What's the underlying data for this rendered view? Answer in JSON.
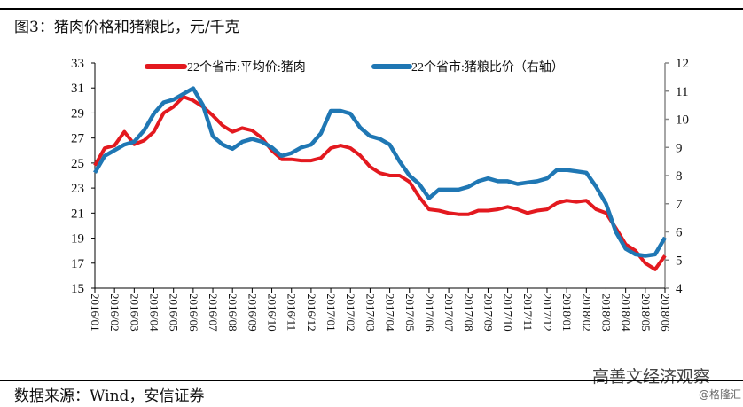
{
  "title": "图3：猪肉价格和猪粮比，元/千克",
  "source": "数据来源：Wind，安信证券",
  "watermark": "高善文经济观察",
  "watermark2": "@格隆汇",
  "colors": {
    "pork_price": "#e3191f",
    "hog_grain_ratio": "#1f77b4"
  },
  "chart_data": {
    "type": "line",
    "title": "",
    "grid": false,
    "legend_position": "top",
    "x_tick_labels": [
      "2016/01",
      "2016/02",
      "2016/03",
      "2016/04",
      "2016/05",
      "2016/06",
      "2016/07",
      "2016/08",
      "2016/09",
      "2016/10",
      "2016/11",
      "2016/12",
      "2017/01",
      "2017/02",
      "2017/03",
      "2017/04",
      "2017/05",
      "2017/06",
      "2017/07",
      "2017/08",
      "2017/09",
      "2017/10",
      "2017/11",
      "2017/12",
      "2018/01",
      "2018/02",
      "2018/03",
      "2018/04",
      "2018/05",
      "2018/06"
    ],
    "y_left": {
      "range": [
        15,
        33
      ],
      "ticks": [
        15,
        17,
        19,
        21,
        23,
        25,
        27,
        29,
        31,
        33
      ]
    },
    "y_right": {
      "range": [
        4,
        12
      ],
      "ticks": [
        4,
        5,
        6,
        7,
        8,
        9,
        10,
        11,
        12
      ]
    },
    "x": [
      "2016-01-01",
      "2016-01-16",
      "2016-02-01",
      "2016-02-16",
      "2016-03-01",
      "2016-03-16",
      "2016-04-01",
      "2016-04-16",
      "2016-05-01",
      "2016-05-16",
      "2016-06-01",
      "2016-06-16",
      "2016-07-01",
      "2016-07-16",
      "2016-08-01",
      "2016-08-16",
      "2016-09-01",
      "2016-09-16",
      "2016-10-01",
      "2016-10-16",
      "2016-11-01",
      "2016-11-16",
      "2016-12-01",
      "2016-12-16",
      "2017-01-01",
      "2017-01-16",
      "2017-02-01",
      "2017-02-16",
      "2017-03-01",
      "2017-03-16",
      "2017-04-01",
      "2017-04-16",
      "2017-05-01",
      "2017-05-16",
      "2017-06-01",
      "2017-06-16",
      "2017-07-01",
      "2017-07-16",
      "2017-08-01",
      "2017-08-16",
      "2017-09-01",
      "2017-09-16",
      "2017-10-01",
      "2017-10-16",
      "2017-11-01",
      "2017-11-16",
      "2017-12-01",
      "2017-12-16",
      "2018-01-01",
      "2018-01-16",
      "2018-02-01",
      "2018-02-16",
      "2018-03-01",
      "2018-03-16",
      "2018-04-01",
      "2018-04-16",
      "2018-05-01",
      "2018-05-16",
      "2018-06-01"
    ],
    "series": [
      {
        "name": "22个省市:平均价:猪肉",
        "axis": "left",
        "values": [
          24.8,
          26.2,
          26.4,
          27.5,
          26.5,
          26.8,
          27.5,
          29,
          29.5,
          30.3,
          30,
          29.5,
          28.8,
          28,
          27.5,
          27.8,
          27.6,
          27,
          26,
          25.3,
          25.3,
          25.2,
          25.2,
          25.4,
          26.2,
          26.4,
          26.2,
          25.6,
          24.7,
          24.2,
          24,
          24,
          23.5,
          22.3,
          21.3,
          21.2,
          21,
          20.9,
          20.9,
          21.2,
          21.2,
          21.3,
          21.5,
          21.3,
          21,
          21.2,
          21.3,
          21.8,
          22,
          21.9,
          22,
          21.3,
          21,
          19.8,
          18.5,
          18,
          17,
          16.5,
          17.6
        ]
      },
      {
        "name": "22个省市:猪粮比价（右轴）",
        "axis": "right",
        "values": [
          8.1,
          8.7,
          8.9,
          9.1,
          9.2,
          9.6,
          10.2,
          10.6,
          10.7,
          10.9,
          11.1,
          10.5,
          9.4,
          9.1,
          8.95,
          9.2,
          9.3,
          9.2,
          9.0,
          8.7,
          8.8,
          9.0,
          9.1,
          9.5,
          10.3,
          10.3,
          10.2,
          9.7,
          9.4,
          9.3,
          9.1,
          8.5,
          8.0,
          7.7,
          7.2,
          7.5,
          7.5,
          7.5,
          7.6,
          7.8,
          7.9,
          7.8,
          7.8,
          7.7,
          7.75,
          7.8,
          7.9,
          8.2,
          8.2,
          8.15,
          8.1,
          7.6,
          7.0,
          6.0,
          5.4,
          5.2,
          5.15,
          5.2,
          5.8
        ]
      }
    ]
  }
}
